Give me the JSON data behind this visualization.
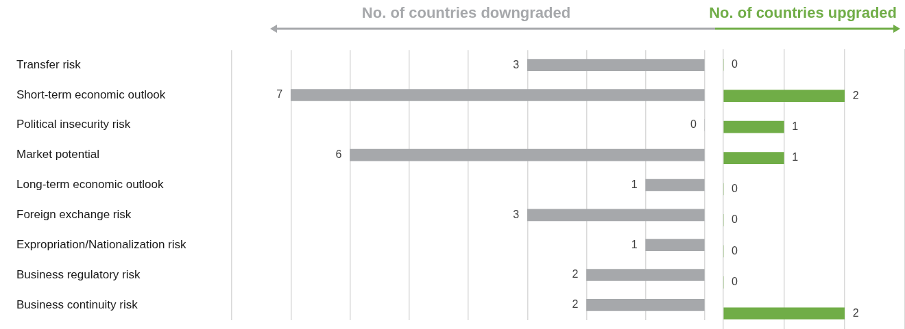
{
  "chart_data": [
    {
      "type": "bar",
      "orientation": "horizontal",
      "title": "No. of countries downgraded",
      "categories": [
        "Transfer risk",
        "Short-term economic outlook",
        "Political insecurity risk",
        "Market potential",
        "Long-term economic outlook",
        "Foreign exchange risk",
        "Expropriation/Nationalization risk",
        "Business regulatory risk",
        "Business continuity risk"
      ],
      "values": [
        3,
        7,
        0,
        6,
        1,
        3,
        1,
        2,
        2
      ],
      "color": "#a6a8ab",
      "xlim": [
        8,
        0
      ],
      "xticks": [
        {
          "value": 8,
          "label": null
        },
        {
          "value": 7,
          "label": null
        },
        {
          "value": 6,
          "label": null
        },
        {
          "value": 5,
          "label": null
        },
        {
          "value": 4,
          "label": null
        },
        {
          "value": 3,
          "label": null
        },
        {
          "value": 2,
          "label": null
        },
        {
          "value": 1,
          "label": null
        },
        {
          "value": 0,
          "label": null
        }
      ],
      "grid": "x",
      "tick_labels": "y",
      "data_labels": true
    },
    {
      "type": "bar",
      "orientation": "horizontal",
      "title": "No. of countries upgraded",
      "categories": [
        null,
        null,
        null,
        null,
        null,
        null,
        null,
        null,
        null
      ],
      "values": [
        0,
        2,
        1,
        1,
        0,
        0,
        0,
        0,
        2
      ],
      "color": "#70ad47",
      "xlim": [
        0,
        3
      ],
      "xticks": [
        {
          "value": 0,
          "label": null
        },
        {
          "value": 1,
          "label": null
        },
        {
          "value": 2,
          "label": null
        },
        {
          "value": 3,
          "label": null
        }
      ],
      "grid": "x",
      "tick_labels": false,
      "data_labels": true
    }
  ]
}
